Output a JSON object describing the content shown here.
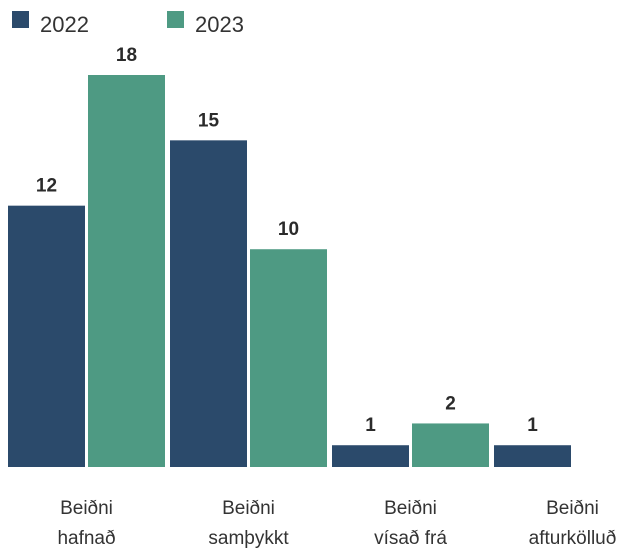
{
  "chart_data": {
    "type": "bar",
    "categories": [
      [
        "Beiðni",
        "hafnað"
      ],
      [
        "Beiðni",
        "samþykkt"
      ],
      [
        "Beiðni",
        "vísað frá"
      ],
      [
        "Beiðni",
        "afturkölluð"
      ]
    ],
    "series": [
      {
        "name": "2022",
        "color": "#2b4a6b",
        "values": [
          12,
          15,
          1,
          1
        ]
      },
      {
        "name": "2023",
        "color": "#4e9a83",
        "values": [
          18,
          10,
          2,
          0
        ]
      }
    ],
    "ylim": [
      0,
      18
    ],
    "legend_position": "top-left",
    "grid": false
  }
}
